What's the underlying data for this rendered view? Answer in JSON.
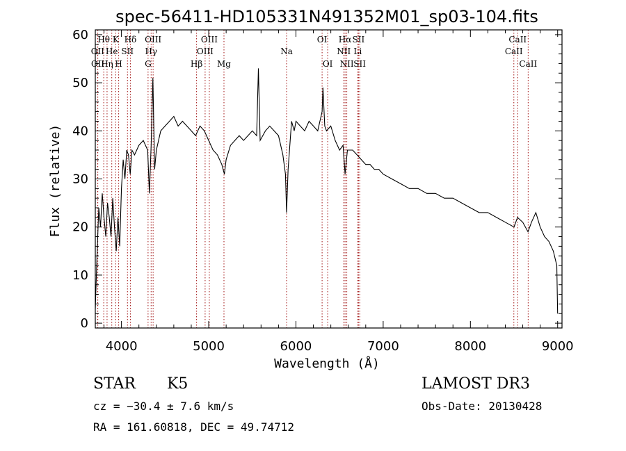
{
  "chart_data": {
    "type": "line",
    "title": "spec-56411-HD105331N491352M01_sp03-104.fits",
    "xlabel": "Wavelength (Å)",
    "ylabel": "Flux (relative)",
    "xlim": [
      3700,
      9050
    ],
    "ylim": [
      -1,
      61
    ],
    "xticks": [
      4000,
      5000,
      6000,
      7000,
      8000,
      9000
    ],
    "yticks": [
      0,
      10,
      20,
      30,
      40,
      50,
      60
    ],
    "grid": false,
    "series": [
      {
        "color": "#000000",
        "points": [
          [
            3700,
            3
          ],
          [
            3720,
            14
          ],
          [
            3740,
            24
          ],
          [
            3760,
            20
          ],
          [
            3780,
            27
          ],
          [
            3800,
            22
          ],
          [
            3820,
            18
          ],
          [
            3840,
            25
          ],
          [
            3860,
            22
          ],
          [
            3880,
            18
          ],
          [
            3900,
            26
          ],
          [
            3920,
            20
          ],
          [
            3940,
            15
          ],
          [
            3960,
            22
          ],
          [
            3980,
            16
          ],
          [
            4000,
            28
          ],
          [
            4020,
            34
          ],
          [
            4040,
            30
          ],
          [
            4060,
            36
          ],
          [
            4080,
            35
          ],
          [
            4100,
            31
          ],
          [
            4120,
            36
          ],
          [
            4150,
            35
          ],
          [
            4200,
            37
          ],
          [
            4250,
            38
          ],
          [
            4300,
            36
          ],
          [
            4320,
            27
          ],
          [
            4340,
            37
          ],
          [
            4360,
            51
          ],
          [
            4380,
            32
          ],
          [
            4400,
            36
          ],
          [
            4450,
            40
          ],
          [
            4500,
            41
          ],
          [
            4550,
            42
          ],
          [
            4600,
            43
          ],
          [
            4650,
            41
          ],
          [
            4700,
            42
          ],
          [
            4750,
            41
          ],
          [
            4800,
            40
          ],
          [
            4850,
            39
          ],
          [
            4900,
            41
          ],
          [
            4950,
            40
          ],
          [
            5000,
            38
          ],
          [
            5050,
            36
          ],
          [
            5100,
            35
          ],
          [
            5150,
            33
          ],
          [
            5180,
            31
          ],
          [
            5200,
            34
          ],
          [
            5250,
            37
          ],
          [
            5300,
            38
          ],
          [
            5350,
            39
          ],
          [
            5400,
            38
          ],
          [
            5450,
            39
          ],
          [
            5500,
            40
          ],
          [
            5550,
            39
          ],
          [
            5570,
            53
          ],
          [
            5590,
            38
          ],
          [
            5650,
            40
          ],
          [
            5700,
            41
          ],
          [
            5750,
            40
          ],
          [
            5800,
            39
          ],
          [
            5850,
            35
          ],
          [
            5880,
            31
          ],
          [
            5893,
            23
          ],
          [
            5910,
            32
          ],
          [
            5950,
            42
          ],
          [
            5980,
            40
          ],
          [
            6000,
            42
          ],
          [
            6050,
            41
          ],
          [
            6100,
            40
          ],
          [
            6150,
            42
          ],
          [
            6200,
            41
          ],
          [
            6250,
            40
          ],
          [
            6300,
            44
          ],
          [
            6310,
            49
          ],
          [
            6330,
            41
          ],
          [
            6350,
            40
          ],
          [
            6400,
            41
          ],
          [
            6450,
            38
          ],
          [
            6500,
            36
          ],
          [
            6540,
            37
          ],
          [
            6563,
            31
          ],
          [
            6590,
            36
          ],
          [
            6650,
            36
          ],
          [
            6700,
            35
          ],
          [
            6750,
            34
          ],
          [
            6800,
            33
          ],
          [
            6850,
            33
          ],
          [
            6900,
            32
          ],
          [
            6950,
            32
          ],
          [
            7000,
            31
          ],
          [
            7100,
            30
          ],
          [
            7200,
            29
          ],
          [
            7300,
            28
          ],
          [
            7400,
            28
          ],
          [
            7500,
            27
          ],
          [
            7600,
            27
          ],
          [
            7700,
            26
          ],
          [
            7800,
            26
          ],
          [
            7900,
            25
          ],
          [
            8000,
            24
          ],
          [
            8100,
            23
          ],
          [
            8200,
            23
          ],
          [
            8300,
            22
          ],
          [
            8400,
            21
          ],
          [
            8500,
            20
          ],
          [
            8540,
            22
          ],
          [
            8600,
            21
          ],
          [
            8660,
            19
          ],
          [
            8700,
            21
          ],
          [
            8750,
            23
          ],
          [
            8800,
            20
          ],
          [
            8850,
            18
          ],
          [
            8900,
            17
          ],
          [
            8950,
            15
          ],
          [
            8990,
            12
          ],
          [
            9000,
            2
          ]
        ]
      }
    ],
    "spectral_lines": [
      {
        "label": "Hθ",
        "x": 3797,
        "row": 0
      },
      {
        "label": "OII",
        "x": 3727,
        "row": 1
      },
      {
        "label": "OII",
        "x": 3729,
        "row": 2
      },
      {
        "label": "He",
        "x": 3889,
        "row": 1
      },
      {
        "label": "Hη",
        "x": 3835,
        "row": 2
      },
      {
        "label": "K",
        "x": 3934,
        "row": 0
      },
      {
        "label": "SII",
        "x": 4069,
        "row": 1
      },
      {
        "label": "H",
        "x": 3968,
        "row": 2
      },
      {
        "label": "Hδ",
        "x": 4102,
        "row": 0
      },
      {
        "label": "OIII",
        "x": 4363,
        "row": 0
      },
      {
        "label": "Hγ",
        "x": 4340,
        "row": 1
      },
      {
        "label": "G",
        "x": 4305,
        "row": 2
      },
      {
        "label": "Hβ",
        "x": 4861,
        "row": 2
      },
      {
        "label": "OIII",
        "x": 5007,
        "row": 0
      },
      {
        "label": "OIII",
        "x": 4959,
        "row": 1
      },
      {
        "label": "Mg",
        "x": 5175,
        "row": 2
      },
      {
        "label": "Na",
        "x": 5893,
        "row": 1
      },
      {
        "label": "OI",
        "x": 6300,
        "row": 0
      },
      {
        "label": "OI",
        "x": 6364,
        "row": 2
      },
      {
        "label": "Hα",
        "x": 6563,
        "row": 0
      },
      {
        "label": "SII",
        "x": 6717,
        "row": 0
      },
      {
        "label": "NII",
        "x": 6548,
        "row": 1
      },
      {
        "label": "Li",
        "x": 6708,
        "row": 1
      },
      {
        "label": "NII",
        "x": 6583,
        "row": 2
      },
      {
        "label": "SII",
        "x": 6731,
        "row": 2
      },
      {
        "label": "CaII",
        "x": 8542,
        "row": 0
      },
      {
        "label": "CaII",
        "x": 8498,
        "row": 1
      },
      {
        "label": "CaII",
        "x": 8662,
        "row": 2
      }
    ],
    "line_marker_color": "#a01010"
  },
  "info": {
    "object_class": "STAR",
    "subclass": "K5",
    "survey": "LAMOST DR3",
    "cz": "cz = −30.4 ± 7.6 km/s",
    "obs_date": "Obs-Date: 20130428",
    "coords": "RA = 161.60818, DEC =  49.74712"
  }
}
